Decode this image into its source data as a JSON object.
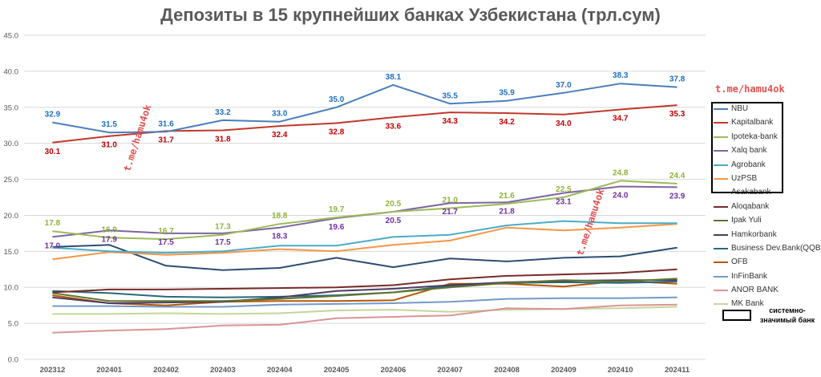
{
  "chart_data": {
    "type": "line",
    "title": "Депозиты в 15 крупнейших банках Узбекистана (трл.сум)",
    "x": [
      "202312",
      "202401",
      "202402",
      "202403",
      "202404",
      "202405",
      "202406",
      "202407",
      "202408",
      "202409",
      "202410",
      "202411"
    ],
    "yticks": [
      "0.0",
      "5.0",
      "10.0",
      "15.0",
      "20.0",
      "25.0",
      "30.0",
      "35.0",
      "40.0",
      "45.0"
    ],
    "ylim": [
      0,
      45
    ],
    "grid": true,
    "legend_position": "right",
    "series": [
      {
        "name": "NBU",
        "color": "#4a7ebb",
        "label_color": "#1f6fbf",
        "labeled": true,
        "label_pos": "above",
        "values": [
          32.9,
          31.5,
          31.6,
          33.2,
          33.0,
          35.0,
          38.1,
          35.5,
          35.9,
          37.0,
          38.3,
          37.8
        ]
      },
      {
        "name": "Kapitalbank",
        "color": "#c0392b",
        "label_color": "#c00000",
        "labeled": true,
        "label_pos": "below",
        "values": [
          30.1,
          31.0,
          31.7,
          31.8,
          32.4,
          32.8,
          33.6,
          34.3,
          34.2,
          34.0,
          34.7,
          35.3
        ]
      },
      {
        "name": "Ipoteka-bank",
        "color": "#9bbb59",
        "label_color": "#8db33a",
        "labeled": true,
        "label_pos": "above",
        "values": [
          17.8,
          16.9,
          16.7,
          17.3,
          18.8,
          19.7,
          20.5,
          21.0,
          21.6,
          22.5,
          24.8,
          24.4
        ]
      },
      {
        "name": "Xalq bank",
        "color": "#8064a2",
        "label_color": "#7030a0",
        "labeled": true,
        "label_pos": "below",
        "values": [
          17.0,
          17.9,
          17.5,
          17.5,
          18.3,
          19.6,
          20.5,
          21.7,
          21.8,
          23.1,
          24.0,
          23.9
        ]
      },
      {
        "name": "Agrobank",
        "color": "#4bacc6",
        "labeled": false,
        "values": [
          15.5,
          15.0,
          14.8,
          15.0,
          15.8,
          15.8,
          17.0,
          17.3,
          18.6,
          19.2,
          18.9,
          18.9
        ]
      },
      {
        "name": "UzPSB",
        "color": "#f79646",
        "labeled": false,
        "values": [
          13.9,
          14.9,
          14.5,
          14.8,
          15.3,
          15.0,
          15.9,
          16.5,
          18.3,
          17.9,
          18.3,
          18.8
        ]
      },
      {
        "name": "Asakabank",
        "color": "#2c4d75",
        "labeled": false,
        "values": [
          15.6,
          15.9,
          13.0,
          12.4,
          12.7,
          14.1,
          12.8,
          14.0,
          13.6,
          14.1,
          14.3,
          15.5
        ]
      },
      {
        "name": "Aloqabank",
        "color": "#772c2a",
        "labeled": false,
        "values": [
          9.3,
          9.7,
          9.7,
          9.8,
          9.9,
          10.0,
          10.3,
          11.1,
          11.6,
          11.8,
          12.0,
          12.5
        ]
      },
      {
        "name": "Ipak Yuli",
        "color": "#5f7530",
        "labeled": false,
        "values": [
          9.2,
          8.1,
          8.1,
          8.1,
          8.4,
          8.8,
          9.3,
          10.0,
          10.6,
          11.0,
          10.8,
          11.2
        ]
      },
      {
        "name": "Hamkorbank",
        "color": "#4d3b62",
        "labeled": false,
        "values": [
          8.6,
          7.8,
          7.9,
          8.0,
          8.6,
          9.5,
          9.8,
          10.3,
          10.7,
          10.9,
          11.0,
          11.0
        ]
      },
      {
        "name": "Business Dev.Bank(QQB)",
        "color": "#276a7c",
        "labeled": false,
        "values": [
          9.5,
          9.2,
          8.7,
          8.6,
          8.7,
          8.9,
          9.3,
          10.2,
          10.6,
          10.7,
          10.6,
          10.8
        ]
      },
      {
        "name": "OFB",
        "color": "#b65708",
        "labeled": false,
        "values": [
          8.9,
          7.8,
          7.5,
          8.0,
          8.1,
          8.1,
          8.2,
          10.5,
          10.5,
          10.1,
          10.9,
          10.5
        ]
      },
      {
        "name": "InFinBank",
        "color": "#729aca",
        "labeled": false,
        "values": [
          7.4,
          7.4,
          7.3,
          7.3,
          7.6,
          7.7,
          7.8,
          8.0,
          8.4,
          8.5,
          8.5,
          8.6
        ]
      },
      {
        "name": "ANOR BANK",
        "color": "#d99594",
        "labeled": false,
        "values": [
          3.7,
          4.0,
          4.2,
          4.7,
          4.8,
          5.7,
          5.9,
          6.1,
          7.1,
          7.0,
          7.5,
          7.6
        ]
      },
      {
        "name": "MK Bank",
        "color": "#c3d69b",
        "labeled": false,
        "values": [
          6.3,
          6.3,
          6.4,
          6.3,
          6.4,
          6.8,
          6.9,
          6.6,
          6.9,
          7.0,
          7.1,
          7.3
        ]
      }
    ]
  },
  "watermark": "t.me/hamu4ok",
  "legend_note": "системно-значимый банк"
}
